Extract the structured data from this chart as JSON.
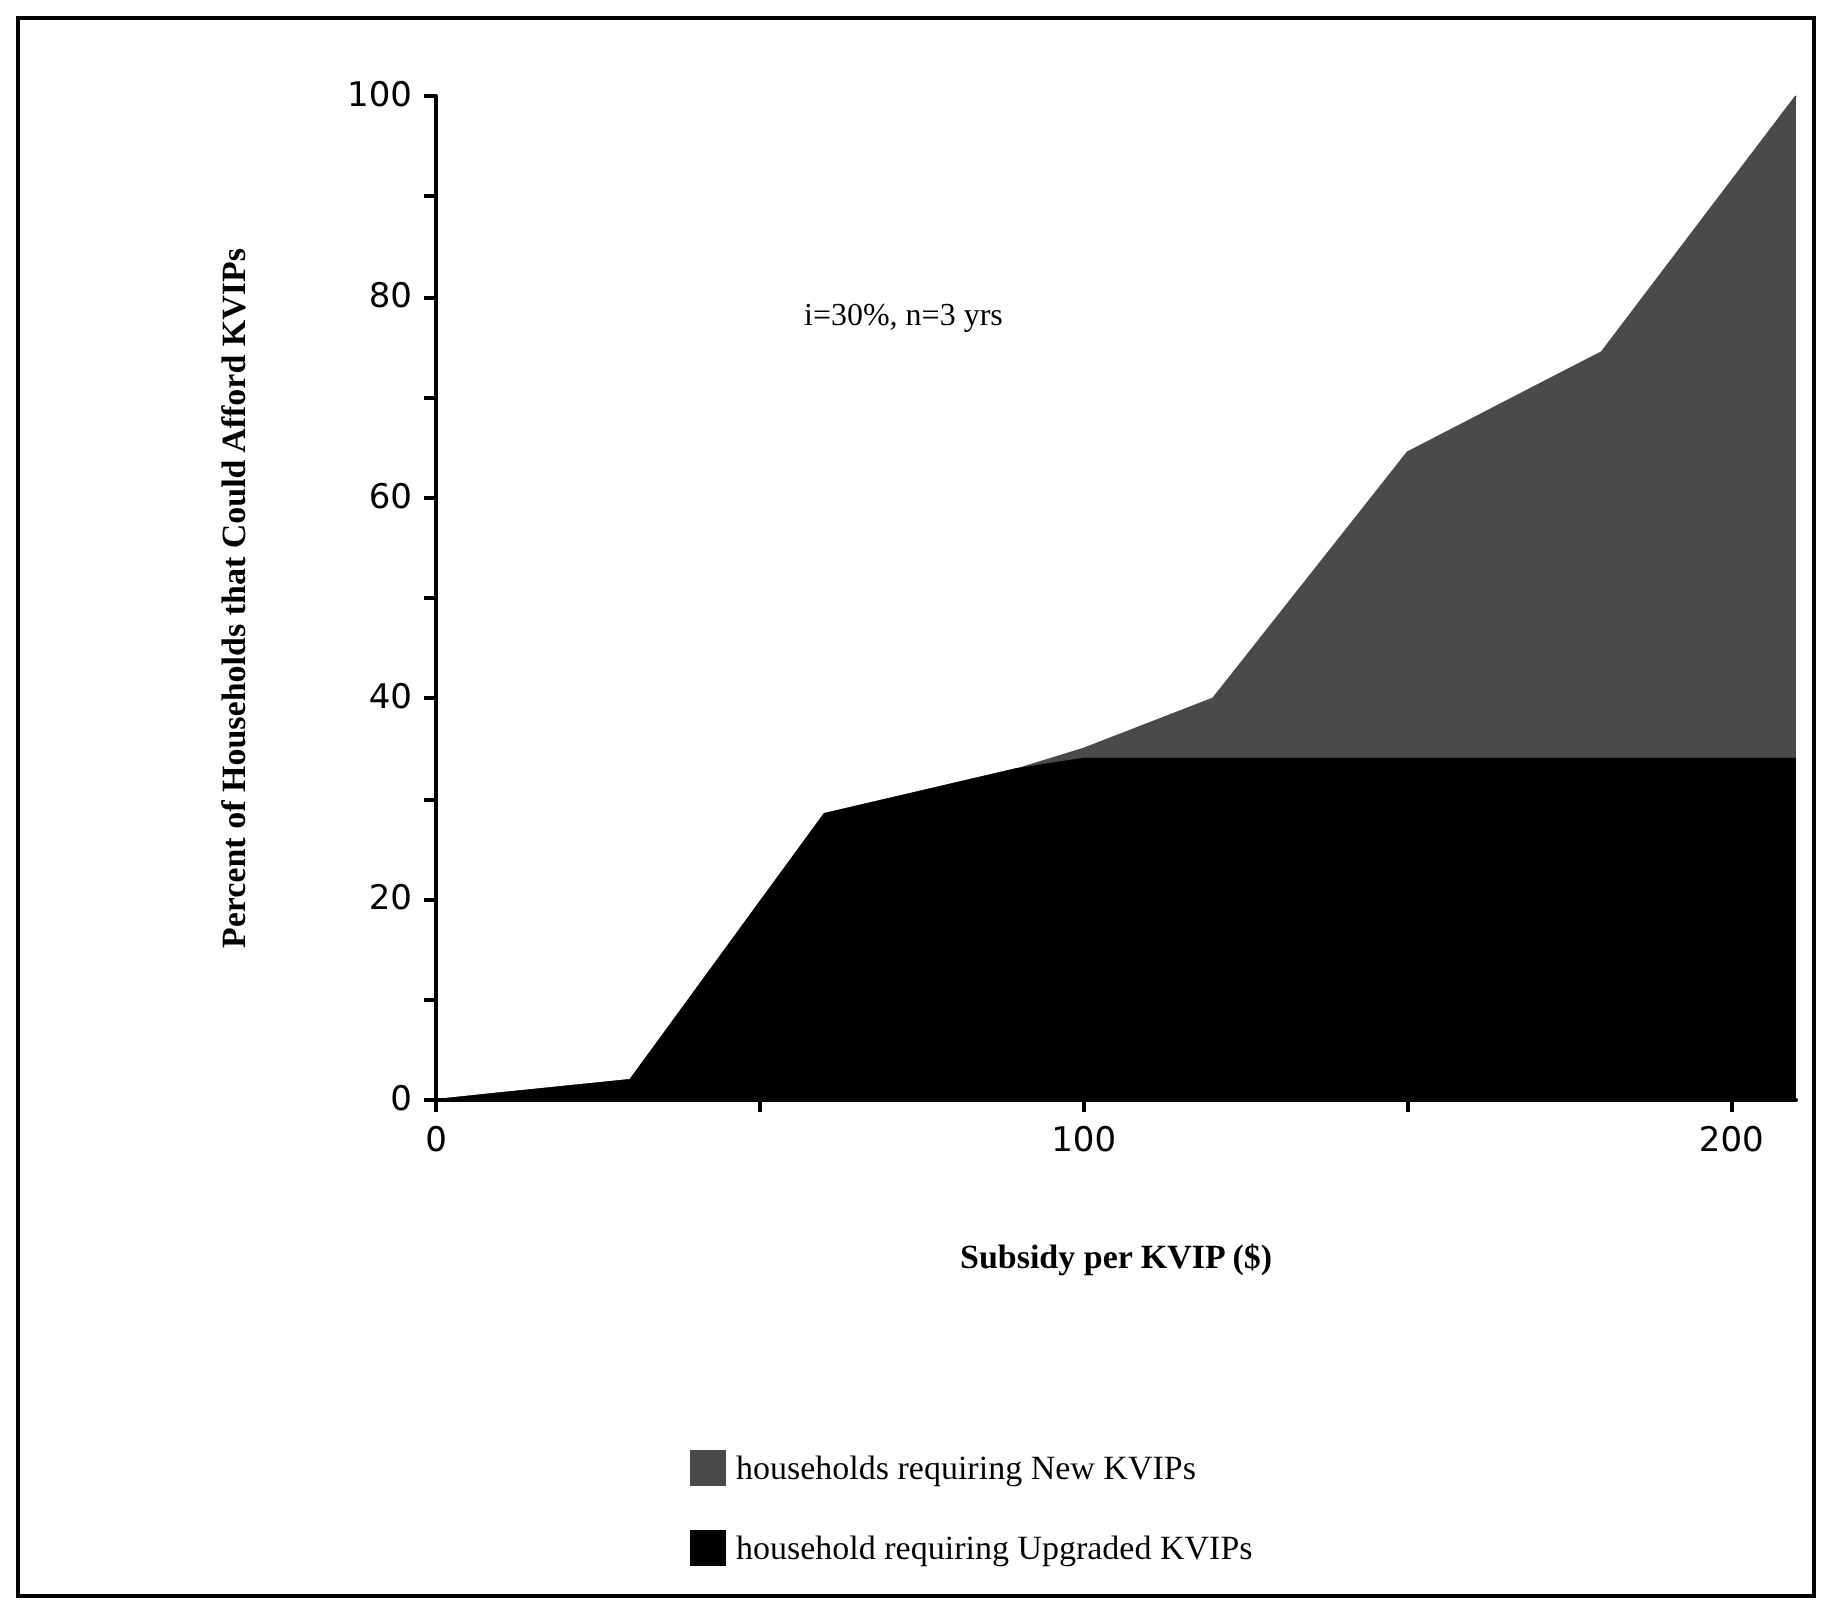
{
  "chart_data": {
    "type": "area",
    "stacked": true,
    "xlabel": "Subsidy per KVIP ($)",
    "ylabel": "Percent of Households that Could Afford KVIPs",
    "annotations": [
      "i=30%, n=3 yrs"
    ],
    "x": [
      0,
      30,
      60,
      90,
      100,
      120,
      150,
      180,
      210
    ],
    "series": [
      {
        "name": "household requiring Upgraded KVIPs",
        "color": "#000000",
        "values": [
          0,
          2,
          28.5,
          33,
          34,
          34,
          34,
          34,
          34
        ]
      },
      {
        "name": "households requiring New KVIPs",
        "color": "#4a4a4a",
        "values": [
          0,
          0,
          0,
          0,
          1,
          6,
          30.5,
          40.5,
          66
        ]
      }
    ],
    "xlim": [
      0,
      210
    ],
    "xticks": [
      0,
      {
        "value": 50,
        "label": null
      },
      100,
      {
        "value": 150,
        "label": null
      },
      200
    ],
    "ylim": [
      0,
      100
    ],
    "yticks": [
      0,
      {
        "value": 10,
        "label": null
      },
      20,
      {
        "value": 30,
        "label": null
      },
      40,
      {
        "value": 50,
        "label": null
      },
      60,
      {
        "value": 70,
        "label": null
      },
      80,
      {
        "value": 90,
        "label": null
      },
      100
    ],
    "grid": false,
    "legend": "bottom",
    "marker": "none",
    "line_style": "solid"
  }
}
